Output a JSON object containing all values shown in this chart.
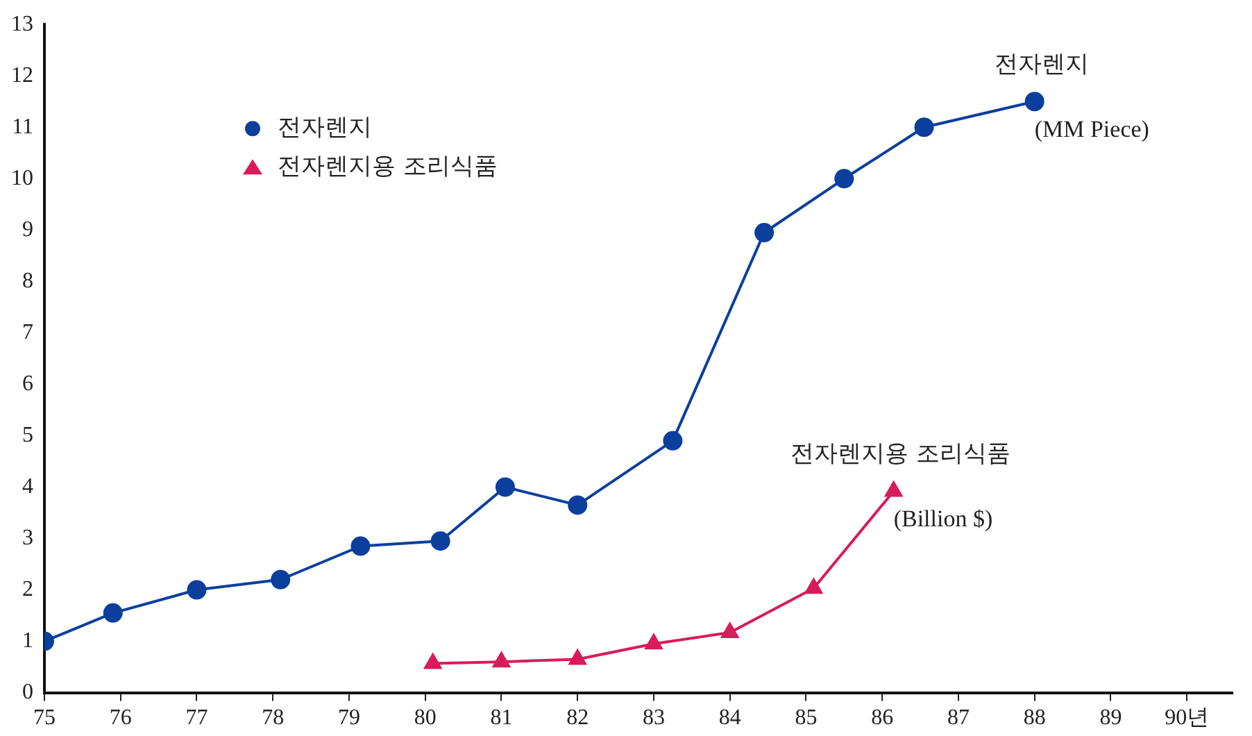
{
  "chart_data": {
    "type": "line",
    "xlim": [
      75,
      90.6
    ],
    "xticks": [
      75,
      76,
      77,
      78,
      79,
      80,
      81,
      82,
      83,
      84,
      85,
      86,
      87,
      88,
      89,
      {
        "value": 90,
        "label": "90년"
      }
    ],
    "ylim": [
      0,
      13
    ],
    "yticks": [
      0,
      1,
      2,
      3,
      4,
      5,
      6,
      7,
      8,
      9,
      10,
      11,
      12,
      13
    ],
    "grid": false,
    "legend": "top left",
    "series": [
      {
        "name": "전자렌지",
        "color": "#0b3f9e",
        "marker": "circle",
        "x": [
          75,
          75.9,
          77,
          78.1,
          79.15,
          80.2,
          81.05,
          82,
          83.25,
          84.45,
          85.5,
          86.55,
          88
        ],
        "values": [
          1.0,
          1.55,
          2.0,
          2.2,
          2.85,
          2.95,
          4.0,
          3.65,
          4.9,
          8.95,
          10.0,
          11.0,
          11.5
        ]
      },
      {
        "name": "전자렌지용 조리식품",
        "color": "#d81b5a",
        "marker": "triangle",
        "x": [
          80.1,
          81,
          82,
          83,
          84,
          85.1,
          86.15
        ],
        "values": [
          0.57,
          0.6,
          0.65,
          0.95,
          1.17,
          2.03,
          3.92
        ]
      }
    ],
    "annotations": [
      "전자렌지",
      "(MM Piece)",
      "전자렌지용 조리식품",
      "(Billion $)"
    ]
  }
}
